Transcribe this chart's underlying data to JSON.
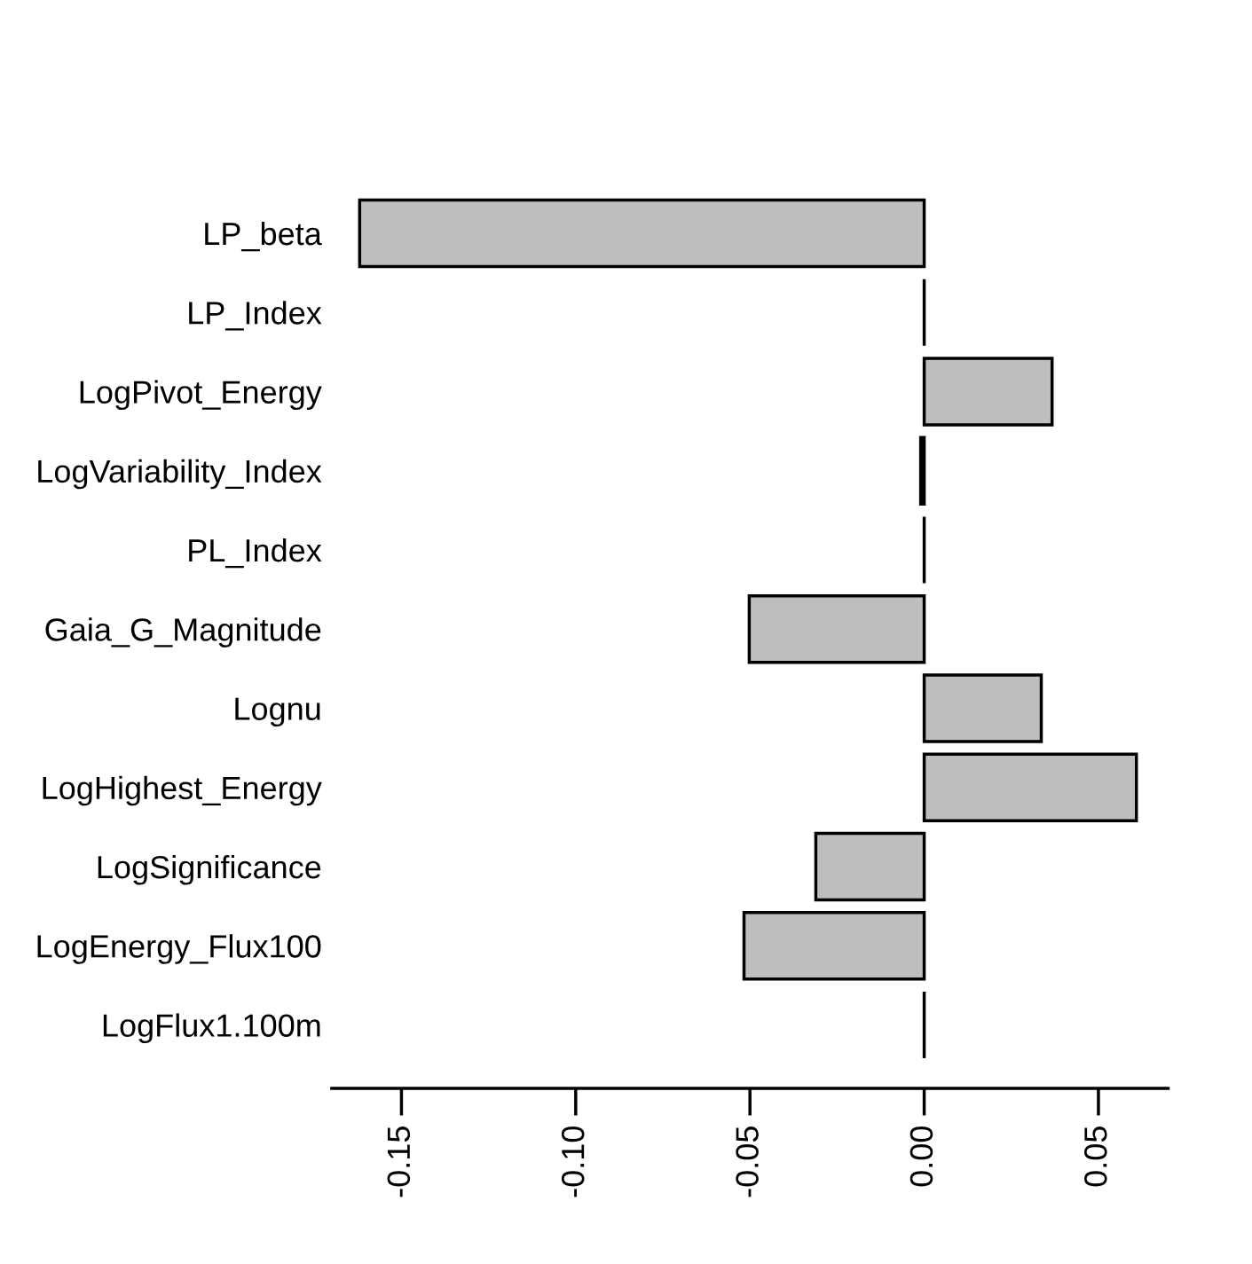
{
  "chart_data": {
    "type": "bar",
    "orientation": "horizontal",
    "categories": [
      "LP_beta",
      "LP_Index",
      "LogPivot_Energy",
      "LogVariability_Index",
      "PL_Index",
      "Gaia_G_Magnitude",
      "Lognu",
      "LogHighest_Energy",
      "LogSignificance",
      "LogEnergy_Flux100",
      "LogFlux1.100m"
    ],
    "values": [
      -0.162,
      0,
      0.0367,
      -0.001,
      0,
      -0.0502,
      0.0336,
      0.0609,
      -0.0311,
      -0.0517,
      0
    ],
    "colors": [
      "#bebebe",
      "#000000",
      "#bebebe",
      "#000000",
      "#000000",
      "#bebebe",
      "#bebebe",
      "#bebebe",
      "#bebebe",
      "#bebebe",
      "#000000"
    ],
    "xlim": [
      -0.17,
      0.07
    ],
    "xticks": [
      {
        "value": -0.15,
        "label": "-0.15"
      },
      {
        "value": -0.1,
        "label": "-0.10"
      },
      {
        "value": -0.05,
        "label": "-0.05"
      },
      {
        "value": 0,
        "label": "0.00"
      },
      {
        "value": 0.05,
        "label": "0.05"
      }
    ],
    "grid": false
  }
}
